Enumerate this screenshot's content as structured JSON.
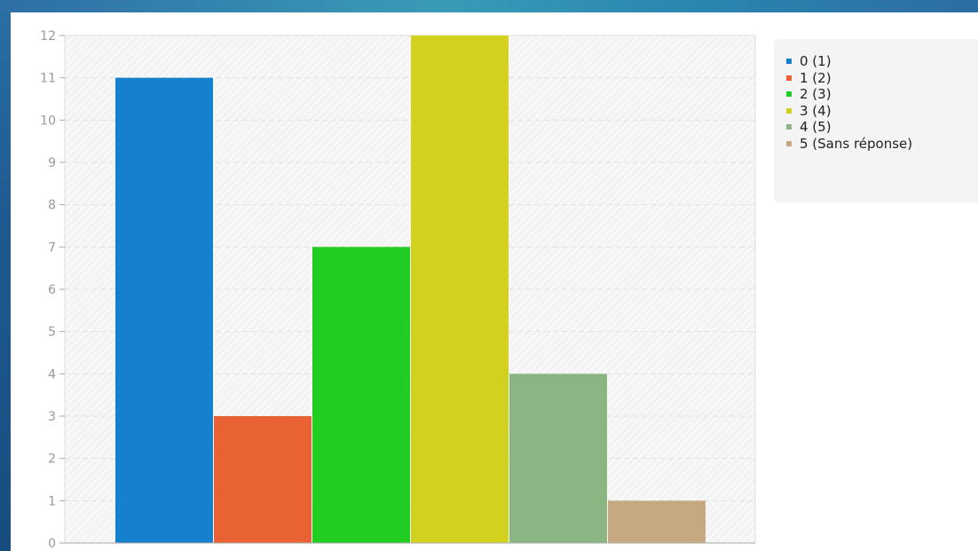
{
  "chart_data": {
    "type": "bar",
    "categories": [
      "0 (1)",
      "1 (2)",
      "2 (3)",
      "3 (4)",
      "4 (5)",
      "5 (Sans réponse)"
    ],
    "values": [
      11,
      3,
      7,
      12,
      4,
      1
    ],
    "colors": [
      "#1580cd",
      "#e86233",
      "#22cd22",
      "#d2d21e",
      "#8bb583",
      "#c7a97f"
    ],
    "yticks": [
      "0",
      "1",
      "2",
      "3",
      "4",
      "5",
      "6",
      "7",
      "8",
      "9",
      "10",
      "11",
      "12"
    ],
    "ylim": [
      0,
      12
    ],
    "grid": true,
    "legend_position": "right"
  }
}
